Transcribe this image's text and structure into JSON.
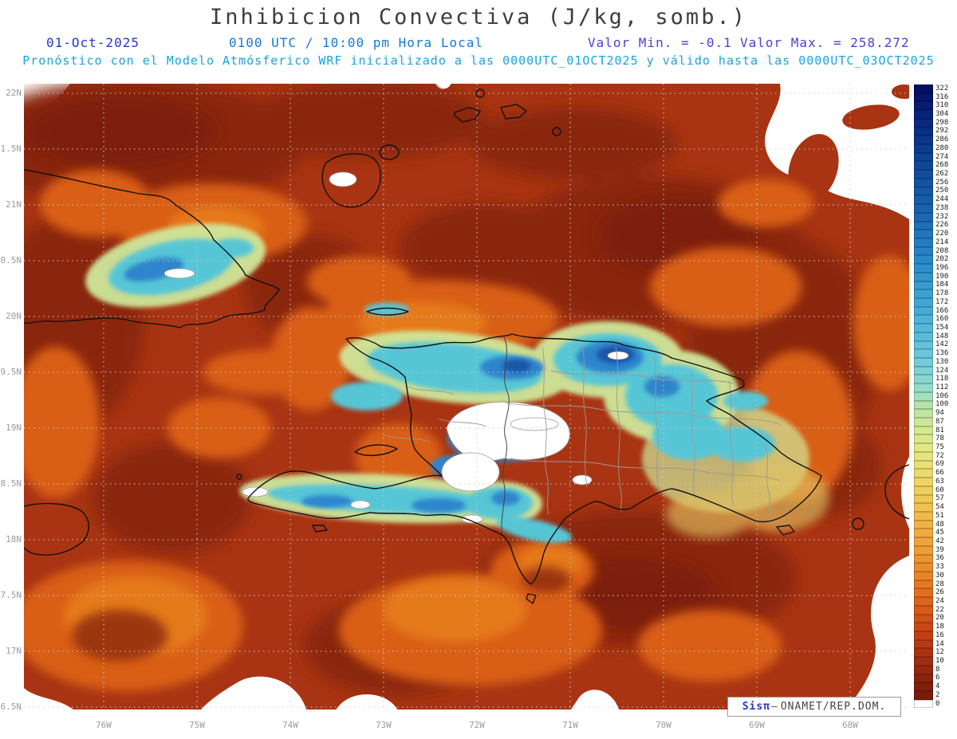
{
  "header": {
    "title": "Inhibicion Convectiva (J/kg, somb.)",
    "date": "01-Oct-2025",
    "time": "0100 UTC / 10:00 pm Hora Local",
    "valor_min": "Valor Min. = -0.1",
    "valor_max": "Valor Max. = 258.272",
    "forecast": "Pronóstico con el Modelo Atmósferico WRF inicializado a las 0000UTC_01OCT2025 y válido hasta las 0000UTC_03OCT2025",
    "colors": {
      "title": "#3d3d3d",
      "date": "#2638cc",
      "time": "#1579d6",
      "minmax": "#4b42d4",
      "forecast": "#17a4e4",
      "axis_label": "#9b9b9b"
    }
  },
  "axes": {
    "lat_ticks": [
      "22N",
      "1.5N",
      "21N",
      "0.5N",
      "20N",
      "9.5N",
      "19N",
      "8.5N",
      "18N",
      "7.5N",
      "17N",
      "6.5N"
    ],
    "lon_ticks": [
      "76W",
      "75W",
      "74W",
      "73W",
      "72W",
      "71W",
      "70W",
      "69W",
      "68W"
    ]
  },
  "colorbar": {
    "orientation": "vertical-right",
    "values": [
      322,
      316,
      310,
      304,
      298,
      292,
      286,
      280,
      274,
      268,
      262,
      256,
      250,
      244,
      238,
      232,
      226,
      220,
      214,
      208,
      202,
      196,
      190,
      184,
      178,
      172,
      166,
      160,
      154,
      148,
      142,
      136,
      130,
      124,
      118,
      112,
      106,
      100,
      94,
      87,
      81,
      78,
      75,
      72,
      69,
      66,
      63,
      60,
      57,
      54,
      51,
      48,
      45,
      42,
      39,
      36,
      33,
      30,
      28,
      26,
      24,
      22,
      20,
      18,
      16,
      14,
      12,
      10,
      8,
      6,
      4,
      2,
      0
    ],
    "gradient_stops": [
      {
        "p": 0.0,
        "c": "#050f62"
      },
      {
        "p": 0.06,
        "c": "#082b80"
      },
      {
        "p": 0.13,
        "c": "#104a9c"
      },
      {
        "p": 0.21,
        "c": "#1c68b4"
      },
      {
        "p": 0.29,
        "c": "#2b8fcc"
      },
      {
        "p": 0.37,
        "c": "#49b0d8"
      },
      {
        "p": 0.44,
        "c": "#6fcadc"
      },
      {
        "p": 0.49,
        "c": "#97dcca"
      },
      {
        "p": 0.515,
        "c": "#b4e3a6"
      },
      {
        "p": 0.55,
        "c": "#d2e992"
      },
      {
        "p": 0.595,
        "c": "#e6e67e"
      },
      {
        "p": 0.645,
        "c": "#eed260"
      },
      {
        "p": 0.695,
        "c": "#f1b94a"
      },
      {
        "p": 0.745,
        "c": "#efa038"
      },
      {
        "p": 0.79,
        "c": "#e98428"
      },
      {
        "p": 0.83,
        "c": "#e0661c"
      },
      {
        "p": 0.87,
        "c": "#cc4a16"
      },
      {
        "p": 0.91,
        "c": "#b23512"
      },
      {
        "p": 0.95,
        "c": "#8f250d"
      },
      {
        "p": 1.0,
        "c": "#6f1808"
      }
    ],
    "zero_color": "#ffffff"
  },
  "legend": {
    "brand": "Sisπ",
    "separator": "–",
    "org": "ONAMET/REP.DOM."
  },
  "map": {
    "field": "Inhibicion Convectiva",
    "units": "J/kg",
    "value_min": -0.1,
    "value_max": 258.272,
    "region": "Cuba / Hispaniola / Caribbean",
    "colors": {
      "sea_base": "#a93413",
      "dark_red": "#8a2510",
      "deep_red": "#781d0a",
      "orange": "#d95f17",
      "bright_orange": "#e87f1d",
      "gold": "#e0c060",
      "pale_green": "#cfe79a",
      "cyan": "#56c6d6",
      "blue": "#2f85cc",
      "deep_blue": "#1d55a8",
      "white_zone": "#ffffff",
      "coastline": "#121212",
      "border_gray": "#999999",
      "grid": "#cccccc"
    }
  }
}
